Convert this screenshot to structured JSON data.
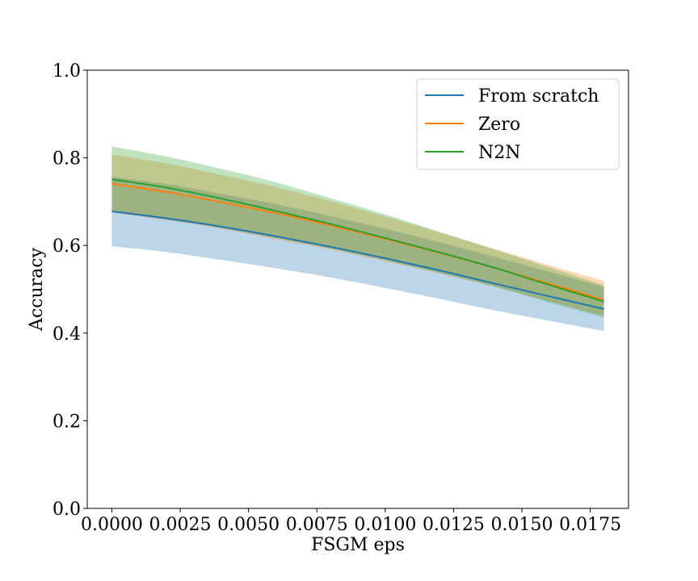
{
  "chart_data": {
    "type": "line",
    "title": "",
    "xlabel": "FSGM eps",
    "ylabel": "Accuracy",
    "xlim": [
      -0.0009,
      0.0189
    ],
    "ylim": [
      0.0,
      1.0
    ],
    "grid": false,
    "legend_position": "top-right",
    "x": [
      0.0,
      0.002,
      0.004,
      0.006,
      0.008,
      0.01,
      0.012,
      0.014,
      0.016,
      0.018
    ],
    "x_ticks": [
      0.0,
      0.0025,
      0.005,
      0.0075,
      0.01,
      0.0125,
      0.015,
      0.0175
    ],
    "x_tick_labels": [
      "0.0000",
      "0.0025",
      "0.0050",
      "0.0075",
      "0.0100",
      "0.0125",
      "0.0150",
      "0.0175"
    ],
    "y_ticks": [
      0.0,
      0.2,
      0.4,
      0.6,
      0.8,
      1.0
    ],
    "y_tick_labels": [
      "0.0",
      "0.2",
      "0.4",
      "0.6",
      "0.8",
      "1.0"
    ],
    "series": [
      {
        "name": "From scratch",
        "color": "#1f77b4",
        "mean": [
          0.678,
          0.662,
          0.643,
          0.621,
          0.597,
          0.571,
          0.543,
          0.513,
          0.484,
          0.455
        ],
        "lower": [
          0.598,
          0.585,
          0.567,
          0.548,
          0.527,
          0.503,
          0.478,
          0.452,
          0.428,
          0.405
        ],
        "upper": [
          0.757,
          0.74,
          0.718,
          0.694,
          0.667,
          0.638,
          0.607,
          0.574,
          0.54,
          0.505
        ]
      },
      {
        "name": "Zero",
        "color": "#ff7f0e",
        "mean": [
          0.741,
          0.722,
          0.699,
          0.674,
          0.646,
          0.615,
          0.583,
          0.549,
          0.513,
          0.476
        ],
        "lower": [
          0.675,
          0.658,
          0.638,
          0.614,
          0.591,
          0.564,
          0.536,
          0.506,
          0.473,
          0.44
        ],
        "upper": [
          0.808,
          0.787,
          0.761,
          0.733,
          0.701,
          0.666,
          0.629,
          0.592,
          0.555,
          0.519
        ]
      },
      {
        "name": "N2N",
        "color": "#2ca02c",
        "mean": [
          0.751,
          0.732,
          0.707,
          0.679,
          0.649,
          0.617,
          0.584,
          0.549,
          0.51,
          0.472
        ],
        "lower": [
          0.676,
          0.659,
          0.64,
          0.617,
          0.593,
          0.566,
          0.537,
          0.506,
          0.47,
          0.436
        ],
        "upper": [
          0.826,
          0.803,
          0.775,
          0.744,
          0.708,
          0.671,
          0.631,
          0.591,
          0.55,
          0.509
        ]
      }
    ]
  }
}
